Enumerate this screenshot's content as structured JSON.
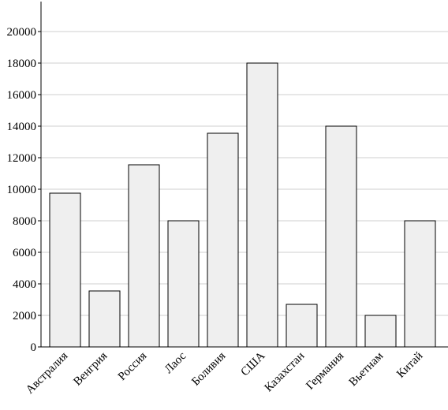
{
  "chart_data": {
    "type": "bar",
    "categories": [
      "Австралия",
      "Венгрия",
      "Россия",
      "Лаос",
      "Боливия",
      "США",
      "Казахстан",
      "Германия",
      "Вьетнам",
      "Китай"
    ],
    "values": [
      9750,
      3550,
      11550,
      8000,
      13550,
      18000,
      2700,
      14000,
      2000,
      8000
    ],
    "color": "#efefef",
    "ylim": [
      0,
      22000
    ],
    "yticks": [
      0,
      2000,
      4000,
      6000,
      8000,
      10000,
      12000,
      14000,
      16000,
      18000,
      20000
    ],
    "grid": true
  }
}
